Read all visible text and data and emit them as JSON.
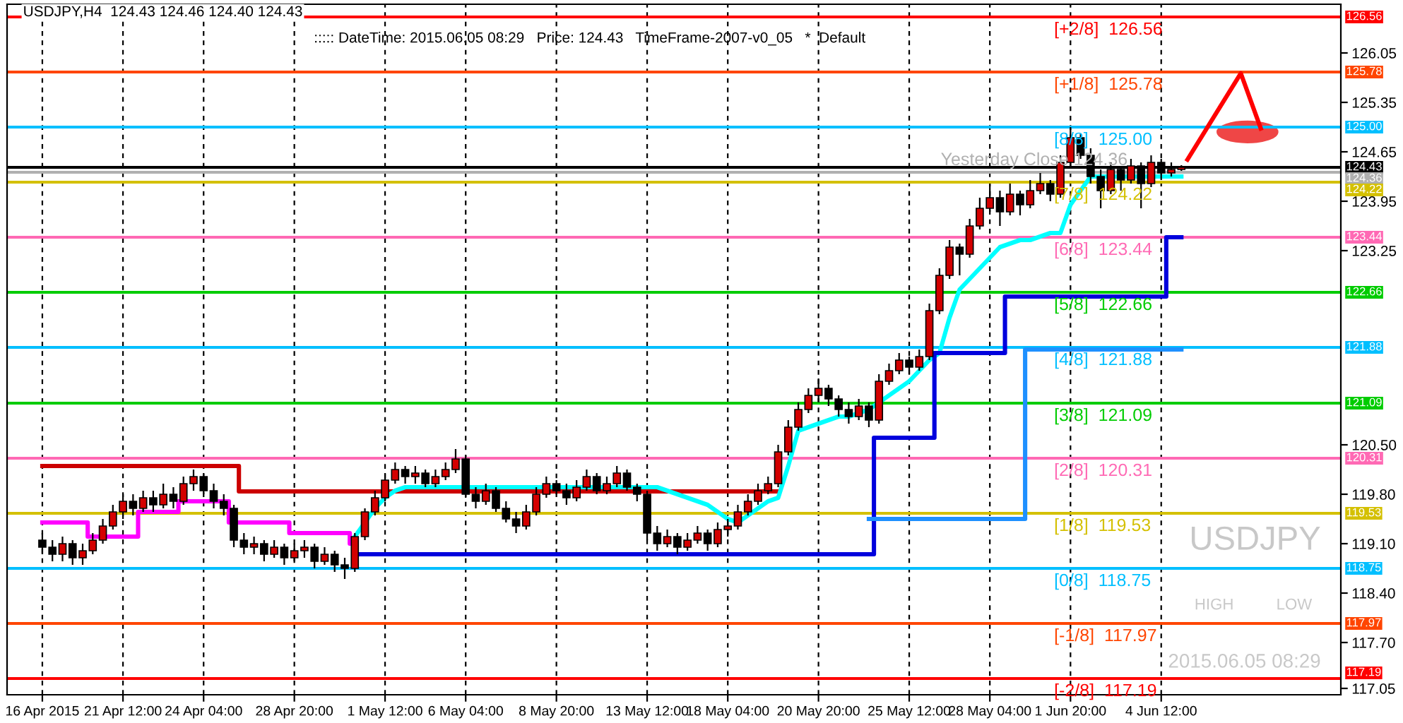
{
  "chart_data": {
    "type": "candlestick",
    "categories": [
      "16 Apr 2015",
      null,
      null,
      null,
      null,
      null,
      null,
      null,
      "21 Apr 12:00",
      null,
      null,
      null,
      null,
      null,
      null,
      null,
      "24 Apr 04:00",
      null,
      null,
      null,
      null,
      null,
      null,
      null,
      null,
      "28 Apr 20:00",
      null,
      null,
      null,
      null,
      null,
      null,
      null,
      null,
      "1 May 12:00",
      null,
      null,
      null,
      null,
      null,
      null,
      null,
      "6 May 04:00",
      null,
      null,
      null,
      null,
      null,
      null,
      null,
      null,
      "8 May 20:00",
      null,
      null,
      null,
      null,
      null,
      null,
      null,
      null,
      "13 May 12:00",
      null,
      null,
      null,
      null,
      null,
      null,
      null,
      "18 May 04:00",
      null,
      null,
      null,
      null,
      null,
      null,
      null,
      null,
      "20 May 20:00",
      null,
      null,
      null,
      null,
      null,
      null,
      null,
      null,
      "25 May 12:00",
      null,
      null,
      null,
      null,
      null,
      null,
      null,
      "28 May 04:00",
      null,
      null,
      null,
      null,
      null,
      null,
      null,
      "1 Jun 20:00",
      null,
      null,
      null,
      null,
      null,
      null,
      null,
      null,
      "4 Jun 12:00",
      null,
      null
    ],
    "ohlc": [
      [
        119.15,
        119.25,
        118.95,
        119.05
      ],
      [
        119.05,
        119.15,
        118.85,
        118.95
      ],
      [
        118.95,
        119.2,
        118.85,
        119.1
      ],
      [
        119.1,
        119.15,
        118.8,
        118.9
      ],
      [
        118.9,
        119.1,
        118.8,
        119.0
      ],
      [
        119.0,
        119.25,
        118.95,
        119.15
      ],
      [
        119.15,
        119.45,
        119.1,
        119.35
      ],
      [
        119.35,
        119.65,
        119.3,
        119.55
      ],
      [
        119.55,
        119.8,
        119.45,
        119.7
      ],
      [
        119.7,
        119.8,
        119.5,
        119.6
      ],
      [
        119.6,
        119.85,
        119.55,
        119.75
      ],
      [
        119.75,
        119.85,
        119.55,
        119.65
      ],
      [
        119.65,
        119.95,
        119.6,
        119.8
      ],
      [
        119.8,
        119.9,
        119.6,
        119.7
      ],
      [
        119.7,
        120.05,
        119.65,
        119.95
      ],
      [
        119.95,
        120.15,
        119.85,
        120.05
      ],
      [
        120.05,
        120.1,
        119.8,
        119.85
      ],
      [
        119.85,
        119.95,
        119.6,
        119.7
      ],
      [
        119.7,
        119.8,
        119.5,
        119.6
      ],
      [
        119.6,
        119.65,
        119.05,
        119.15
      ],
      [
        119.15,
        119.25,
        118.95,
        119.05
      ],
      [
        119.05,
        119.2,
        118.95,
        119.1
      ],
      [
        119.1,
        119.15,
        118.85,
        118.95
      ],
      [
        118.95,
        119.15,
        118.9,
        119.05
      ],
      [
        119.05,
        119.1,
        118.8,
        118.9
      ],
      [
        118.9,
        119.1,
        118.85,
        119.0
      ],
      [
        119.0,
        119.15,
        118.9,
        119.05
      ],
      [
        119.05,
        119.1,
        118.75,
        118.85
      ],
      [
        118.85,
        119.05,
        118.8,
        118.95
      ],
      [
        118.95,
        119.0,
        118.7,
        118.8
      ],
      [
        118.8,
        118.9,
        118.6,
        118.75
      ],
      [
        118.75,
        119.25,
        118.7,
        119.2
      ],
      [
        119.2,
        119.6,
        119.15,
        119.55
      ],
      [
        119.55,
        119.85,
        119.5,
        119.75
      ],
      [
        119.75,
        120.1,
        119.7,
        120.0
      ],
      [
        120.0,
        120.25,
        119.95,
        120.15
      ],
      [
        120.15,
        120.2,
        119.95,
        120.05
      ],
      [
        120.05,
        120.2,
        119.95,
        120.1
      ],
      [
        120.1,
        120.15,
        119.9,
        119.95
      ],
      [
        119.95,
        120.15,
        119.9,
        120.05
      ],
      [
        120.05,
        120.25,
        120.0,
        120.15
      ],
      [
        120.15,
        120.44,
        120.1,
        120.3
      ],
      [
        120.3,
        120.35,
        119.75,
        119.8
      ],
      [
        119.8,
        119.9,
        119.6,
        119.7
      ],
      [
        119.7,
        119.95,
        119.65,
        119.85
      ],
      [
        119.85,
        119.9,
        119.55,
        119.6
      ],
      [
        119.6,
        119.7,
        119.4,
        119.45
      ],
      [
        119.45,
        119.55,
        119.25,
        119.35
      ],
      [
        119.35,
        119.65,
        119.3,
        119.55
      ],
      [
        119.55,
        119.9,
        119.5,
        119.8
      ],
      [
        119.8,
        120.05,
        119.75,
        119.95
      ],
      [
        119.95,
        120.0,
        119.8,
        119.85
      ],
      [
        119.85,
        119.95,
        119.65,
        119.75
      ],
      [
        119.75,
        120.0,
        119.7,
        119.9
      ],
      [
        119.9,
        120.15,
        119.85,
        120.05
      ],
      [
        120.05,
        120.1,
        119.8,
        119.85
      ],
      [
        119.85,
        120.05,
        119.8,
        119.95
      ],
      [
        119.95,
        120.2,
        119.9,
        120.1
      ],
      [
        120.1,
        120.15,
        119.85,
        119.9
      ],
      [
        119.9,
        119.95,
        119.7,
        119.8
      ],
      [
        119.8,
        119.85,
        119.15,
        119.25
      ],
      [
        119.25,
        119.35,
        119.0,
        119.1
      ],
      [
        119.1,
        119.3,
        119.05,
        119.2
      ],
      [
        119.2,
        119.25,
        118.95,
        119.05
      ],
      [
        119.05,
        119.25,
        119.0,
        119.15
      ],
      [
        119.15,
        119.35,
        119.1,
        119.25
      ],
      [
        119.25,
        119.3,
        119.0,
        119.1
      ],
      [
        119.1,
        119.4,
        119.05,
        119.3
      ],
      [
        119.3,
        119.45,
        119.2,
        119.35
      ],
      [
        119.35,
        119.65,
        119.3,
        119.55
      ],
      [
        119.55,
        119.8,
        119.5,
        119.7
      ],
      [
        119.7,
        119.95,
        119.65,
        119.85
      ],
      [
        119.85,
        120.05,
        119.8,
        119.95
      ],
      [
        119.95,
        120.5,
        119.9,
        120.4
      ],
      [
        120.4,
        120.85,
        120.35,
        120.75
      ],
      [
        120.75,
        121.1,
        120.7,
        121.0
      ],
      [
        121.0,
        121.3,
        120.95,
        121.2
      ],
      [
        121.2,
        121.44,
        121.1,
        121.3
      ],
      [
        121.3,
        121.35,
        121.05,
        121.15
      ],
      [
        121.15,
        121.2,
        120.9,
        121.0
      ],
      [
        121.0,
        121.1,
        120.8,
        120.9
      ],
      [
        120.9,
        121.15,
        120.85,
        121.05
      ],
      [
        121.05,
        121.1,
        120.75,
        120.85
      ],
      [
        120.85,
        121.5,
        120.8,
        121.4
      ],
      [
        121.4,
        121.65,
        121.35,
        121.55
      ],
      [
        121.55,
        121.8,
        121.5,
        121.7
      ],
      [
        121.7,
        121.75,
        121.5,
        121.6
      ],
      [
        121.6,
        121.85,
        121.55,
        121.75
      ],
      [
        121.75,
        122.5,
        121.7,
        122.4
      ],
      [
        122.4,
        123.0,
        122.35,
        122.9
      ],
      [
        122.9,
        123.4,
        122.85,
        123.3
      ],
      [
        123.3,
        123.35,
        122.9,
        123.2
      ],
      [
        123.2,
        123.7,
        123.15,
        123.6
      ],
      [
        123.6,
        124.0,
        123.55,
        123.85
      ],
      [
        123.85,
        124.2,
        123.8,
        124.0
      ],
      [
        124.0,
        124.1,
        123.6,
        123.8
      ],
      [
        123.8,
        124.2,
        123.75,
        124.05
      ],
      [
        124.05,
        124.1,
        123.75,
        123.9
      ],
      [
        123.9,
        124.25,
        123.85,
        124.1
      ],
      [
        124.1,
        124.35,
        124.05,
        124.2
      ],
      [
        124.2,
        124.25,
        123.95,
        124.05
      ],
      [
        124.05,
        124.6,
        124.0,
        124.5
      ],
      [
        124.5,
        125.0,
        124.45,
        124.85
      ],
      [
        124.85,
        124.9,
        124.55,
        124.6
      ],
      [
        124.6,
        124.7,
        124.2,
        124.3
      ],
      [
        124.3,
        124.4,
        123.85,
        124.1
      ],
      [
        124.1,
        124.5,
        124.05,
        124.4
      ],
      [
        124.4,
        124.45,
        124.1,
        124.25
      ],
      [
        124.25,
        124.55,
        124.2,
        124.45
      ],
      [
        124.45,
        124.5,
        123.85,
        124.2
      ],
      [
        124.2,
        124.6,
        124.15,
        124.5
      ],
      [
        124.5,
        124.55,
        124.25,
        124.35
      ],
      [
        124.35,
        124.5,
        124.3,
        124.4
      ],
      [
        124.4,
        124.46,
        124.38,
        124.43
      ]
    ],
    "colors": [
      "#000000",
      "#000000",
      "#d40000",
      "#000000",
      "#d40000",
      "#d40000",
      "#d40000",
      "#d40000",
      "#d40000",
      "#000000",
      "#d40000",
      "#000000",
      "#d40000",
      "#000000",
      "#d40000",
      "#d40000",
      "#000000",
      "#000000",
      "#000000",
      "#000000",
      "#000000",
      "#d40000",
      "#000000",
      "#d40000",
      "#000000",
      "#d40000",
      "#d40000",
      "#000000",
      "#d40000",
      "#000000",
      "#000000",
      "#d40000",
      "#d40000",
      "#d40000",
      "#d40000",
      "#d40000",
      "#000000",
      "#d40000",
      "#000000",
      "#d40000",
      "#d40000",
      "#d40000",
      "#000000",
      "#000000",
      "#d40000",
      "#000000",
      "#000000",
      "#000000",
      "#d40000",
      "#d40000",
      "#d40000",
      "#000000",
      "#000000",
      "#d40000",
      "#d40000",
      "#000000",
      "#d40000",
      "#d40000",
      "#000000",
      "#000000",
      "#000000",
      "#000000",
      "#d40000",
      "#000000",
      "#d40000",
      "#d40000",
      "#000000",
      "#d40000",
      "#d40000",
      "#d40000",
      "#d40000",
      "#d40000",
      "#d40000",
      "#d40000",
      "#d40000",
      "#d40000",
      "#d40000",
      "#d40000",
      "#000000",
      "#000000",
      "#000000",
      "#d40000",
      "#000000",
      "#d40000",
      "#d40000",
      "#d40000",
      "#000000",
      "#d40000",
      "#d40000",
      "#d40000",
      "#d40000",
      "#000000",
      "#d40000",
      "#d40000",
      "#d40000",
      "#000000",
      "#d40000",
      "#000000",
      "#d40000",
      "#d40000",
      "#000000",
      "#d40000",
      "#d40000",
      "#000000",
      "#000000",
      "#000000",
      "#d40000",
      "#000000",
      "#d40000",
      "#000000",
      "#d40000",
      "#000000",
      "#d40000",
      "#d40000"
    ],
    "series": [
      {
        "type": "step",
        "color": "#cc0000",
        "values": [
          120.2,
          120.2,
          120.2,
          120.2,
          120.2,
          120.2,
          120.2,
          120.2,
          120.2,
          120.2,
          120.2,
          120.2,
          120.2,
          120.2,
          120.2,
          120.2,
          120.2,
          120.2,
          120.2,
          120.2,
          119.84,
          119.84,
          119.84,
          119.84,
          119.84,
          119.84,
          119.84,
          119.84,
          119.84,
          119.84,
          119.84,
          119.84,
          119.84,
          119.84,
          119.84,
          119.84,
          119.84,
          119.84,
          119.84,
          119.84,
          119.84,
          119.84,
          119.84,
          119.84,
          119.84,
          119.84,
          119.84,
          119.84,
          119.84,
          119.84,
          119.84,
          119.84,
          119.84,
          119.84,
          119.84,
          119.84,
          119.84,
          119.84,
          119.84,
          119.84,
          119.84,
          119.84,
          119.84,
          119.84,
          119.84,
          119.84,
          119.84,
          119.84,
          119.84,
          119.84,
          119.84,
          119.84,
          119.84,
          119.84,
          null,
          null,
          null,
          null,
          null,
          null,
          null,
          null,
          null,
          null,
          null,
          null,
          null,
          null,
          null,
          null,
          null,
          null,
          null,
          null,
          null,
          null,
          null,
          null,
          null,
          null,
          null,
          null,
          null,
          null,
          null,
          null,
          null,
          null,
          null,
          null,
          null,
          null,
          null,
          null
        ]
      },
      {
        "type": "step",
        "color": "#ff00ff",
        "values": [
          119.4,
          119.4,
          119.4,
          119.4,
          119.4,
          119.2,
          119.2,
          119.2,
          119.2,
          119.2,
          119.55,
          119.55,
          119.55,
          119.55,
          119.7,
          119.7,
          119.7,
          119.7,
          119.7,
          119.4,
          119.4,
          119.4,
          119.4,
          119.4,
          119.4,
          119.25,
          119.25,
          119.25,
          119.25,
          119.25,
          119.25,
          119.1,
          null,
          null,
          null,
          null,
          null,
          null,
          null,
          null,
          null,
          null,
          null,
          null,
          null,
          null,
          null,
          null,
          null,
          null,
          null,
          null,
          null,
          null,
          null,
          null,
          null,
          null,
          null,
          null,
          null,
          null,
          null,
          null,
          null,
          null,
          null,
          null,
          null,
          null,
          null,
          null,
          null,
          null,
          null,
          null,
          null,
          null,
          null,
          null,
          null,
          null,
          null,
          null,
          null,
          null,
          null,
          null,
          null,
          null,
          null,
          null,
          null,
          null,
          null,
          null,
          null,
          null,
          null,
          null,
          null,
          null,
          null,
          null,
          null,
          null,
          null,
          null,
          null,
          null,
          null,
          null,
          null,
          null
        ]
      },
      {
        "type": "line",
        "color": "#00ffff",
        "values": [
          null,
          null,
          null,
          null,
          null,
          null,
          null,
          null,
          null,
          null,
          null,
          null,
          null,
          null,
          null,
          null,
          null,
          null,
          null,
          null,
          null,
          null,
          null,
          null,
          null,
          null,
          null,
          null,
          null,
          null,
          null,
          119.2,
          119.4,
          119.6,
          119.75,
          119.85,
          119.9,
          119.9,
          119.9,
          119.9,
          119.9,
          119.9,
          119.9,
          119.9,
          119.9,
          119.9,
          119.9,
          119.9,
          119.9,
          119.9,
          119.9,
          119.9,
          119.9,
          119.9,
          119.9,
          119.9,
          119.9,
          119.9,
          119.9,
          119.9,
          119.9,
          119.9,
          119.85,
          119.8,
          119.75,
          119.7,
          119.65,
          119.55,
          119.45,
          119.4,
          119.5,
          119.6,
          119.7,
          119.75,
          120.2,
          120.7,
          120.75,
          120.8,
          120.85,
          120.9,
          120.9,
          120.95,
          121.0,
          121.1,
          121.2,
          121.3,
          121.4,
          121.55,
          121.7,
          121.8,
          122.3,
          122.7,
          122.85,
          123.0,
          123.15,
          123.3,
          123.35,
          123.4,
          123.4,
          123.45,
          123.5,
          123.5,
          123.9,
          124.1,
          124.3,
          124.3,
          124.3,
          124.3,
          124.3,
          124.3,
          124.3,
          124.3,
          124.3,
          124.3
        ]
      },
      {
        "type": "step",
        "color": "#0000dd",
        "values": [
          null,
          null,
          null,
          null,
          null,
          null,
          null,
          null,
          null,
          null,
          null,
          null,
          null,
          null,
          null,
          null,
          null,
          null,
          null,
          null,
          null,
          null,
          null,
          null,
          null,
          null,
          null,
          null,
          null,
          null,
          null,
          118.95,
          118.95,
          118.95,
          118.95,
          118.95,
          118.95,
          118.95,
          118.95,
          118.95,
          118.95,
          118.95,
          118.95,
          118.95,
          118.95,
          118.95,
          118.95,
          118.95,
          118.95,
          118.95,
          118.95,
          118.95,
          118.95,
          118.95,
          118.95,
          118.95,
          118.95,
          118.95,
          118.95,
          118.95,
          118.95,
          118.95,
          118.95,
          118.95,
          118.95,
          118.95,
          118.95,
          118.95,
          118.95,
          118.95,
          118.95,
          118.95,
          118.95,
          118.95,
          118.95,
          118.95,
          118.95,
          118.95,
          118.95,
          118.95,
          118.95,
          118.95,
          118.95,
          120.6,
          120.6,
          120.6,
          120.6,
          120.6,
          120.6,
          121.8,
          121.8,
          121.8,
          121.8,
          121.8,
          121.8,
          121.8,
          122.6,
          122.6,
          122.6,
          122.6,
          122.6,
          122.6,
          122.6,
          122.6,
          122.6,
          122.6,
          122.6,
          122.6,
          122.6,
          122.6,
          122.6,
          122.6,
          123.44,
          123.44
        ]
      },
      {
        "type": "step",
        "color": "#1e90ff",
        "values": [
          null,
          null,
          null,
          null,
          null,
          null,
          null,
          null,
          null,
          null,
          null,
          null,
          null,
          null,
          null,
          null,
          null,
          null,
          null,
          null,
          null,
          null,
          null,
          null,
          null,
          null,
          null,
          null,
          null,
          null,
          null,
          null,
          null,
          null,
          null,
          null,
          null,
          null,
          null,
          null,
          null,
          null,
          null,
          null,
          null,
          null,
          null,
          null,
          null,
          null,
          null,
          null,
          null,
          null,
          null,
          null,
          null,
          null,
          null,
          null,
          null,
          null,
          null,
          null,
          null,
          null,
          null,
          null,
          null,
          null,
          null,
          null,
          null,
          null,
          null,
          null,
          null,
          null,
          null,
          null,
          null,
          null,
          119.45,
          119.45,
          119.45,
          119.45,
          119.45,
          119.45,
          119.45,
          119.45,
          119.45,
          119.45,
          119.45,
          119.45,
          119.45,
          119.45,
          119.45,
          119.45,
          121.85,
          121.85,
          121.85,
          121.85,
          121.85,
          121.85,
          121.85,
          121.85,
          121.85,
          121.85,
          121.85,
          121.85,
          121.85,
          121.85,
          121.85,
          121.85
        ]
      }
    ],
    "ref_lines": [
      {
        "axis": "y",
        "value": 126.56,
        "label": "[+2/8]  126.56",
        "color": "#ff0000"
      },
      {
        "axis": "y",
        "value": 125.78,
        "label": "[+1/8]  125.78",
        "color": "#ff4500"
      },
      {
        "axis": "y",
        "value": 125.0,
        "label": "[8/8]  125.00",
        "color": "#00bfff"
      },
      {
        "axis": "y",
        "value": 124.43,
        "label": null,
        "color": "#000000"
      },
      {
        "axis": "y",
        "value": 124.36,
        "label": "Yesterday Close 124.36",
        "color": "#b0b0b0"
      },
      {
        "axis": "y",
        "value": 124.22,
        "label": "[7/8]  124.22",
        "color": "#d4c000"
      },
      {
        "axis": "y",
        "value": 123.44,
        "label": "[6/8]  123.44",
        "color": "#ff69b4"
      },
      {
        "axis": "y",
        "value": 122.66,
        "label": "[5/8]  122.66",
        "color": "#00cc00"
      },
      {
        "axis": "y",
        "value": 121.88,
        "label": "[4/8]  121.88",
        "color": "#00bfff"
      },
      {
        "axis": "y",
        "value": 121.09,
        "label": "[3/8]  121.09",
        "color": "#00cc00"
      },
      {
        "axis": "y",
        "value": 120.31,
        "label": "[2/8]  120.31",
        "color": "#ff69b4"
      },
      {
        "axis": "y",
        "value": 119.53,
        "label": "[1/8]  119.53",
        "color": "#d4c000"
      },
      {
        "axis": "y",
        "value": 118.75,
        "label": "[0/8]  118.75",
        "color": "#00bfff"
      },
      {
        "axis": "y",
        "value": 117.97,
        "label": "[-1/8]  117.97",
        "color": "#ff4500"
      },
      {
        "axis": "y",
        "value": 117.19,
        "label": "[-2/8]  117.19",
        "color": "#ff0000"
      }
    ],
    "ylim": [
      116.96,
      126.74
    ],
    "yticks": [
      117.05,
      {
        "value": 117.7,
        "label": "117.70"
      },
      {
        "value": 118.4,
        "label": "118.40"
      },
      {
        "value": 119.1,
        "label": "119.10"
      },
      {
        "value": 119.8,
        "label": "119.80"
      },
      {
        "value": 120.5,
        "label": "120.50"
      },
      123.25,
      123.95,
      124.65,
      125.35,
      126.05
    ],
    "grid": "x",
    "annotations": [
      "USDJPY,H4  124.43 124.46 124.40 124.43",
      "::::: DateTime: 2015.06.05 08:29   Price: 124.43   TimeFrame-2007-v0_05   *  Default",
      "USDJPY",
      "HIGH",
      "LOW",
      "2015.06.05 08:29",
      "126.56",
      "125.78",
      "125.00",
      "124.43",
      "124.36",
      "124.22",
      "123.44",
      "122.66",
      "121.88",
      "121.09",
      "120.31",
      "119.53",
      "118.75",
      "117.97",
      "117.19"
    ]
  }
}
